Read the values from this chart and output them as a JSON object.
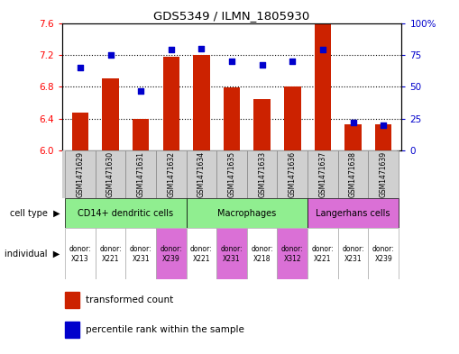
{
  "title": "GDS5349 / ILMN_1805930",
  "samples": [
    "GSM1471629",
    "GSM1471630",
    "GSM1471631",
    "GSM1471632",
    "GSM1471634",
    "GSM1471635",
    "GSM1471633",
    "GSM1471636",
    "GSM1471637",
    "GSM1471638",
    "GSM1471639"
  ],
  "transformed_count": [
    6.48,
    6.9,
    6.4,
    7.18,
    7.2,
    6.79,
    6.65,
    6.8,
    7.59,
    6.33,
    6.33
  ],
  "percentile_rank": [
    65,
    75,
    47,
    79,
    80,
    70,
    67,
    70,
    79,
    22,
    20
  ],
  "ylim_left": [
    6.0,
    7.6
  ],
  "ylim_right": [
    0,
    100
  ],
  "yticks_left": [
    6.0,
    6.4,
    6.8,
    7.2,
    7.6
  ],
  "yticks_right": [
    0,
    25,
    50,
    75,
    100
  ],
  "cell_types": [
    {
      "label": "CD14+ dendritic cells",
      "start": 0,
      "end": 4,
      "color": "#90ee90"
    },
    {
      "label": "Macrophages",
      "start": 4,
      "end": 8,
      "color": "#90ee90"
    },
    {
      "label": "Langerhans cells",
      "start": 8,
      "end": 11,
      "color": "#da70d6"
    }
  ],
  "ind_colors": [
    "#ffffff",
    "#ffffff",
    "#ffffff",
    "#da70d6",
    "#ffffff",
    "#da70d6",
    "#ffffff",
    "#da70d6",
    "#ffffff",
    "#ffffff",
    "#ffffff"
  ],
  "ind_labels": [
    "donor:\nX213",
    "donor:\nX221",
    "donor:\nX231",
    "donor:\nX239",
    "donor:\nX221",
    "donor:\nX231",
    "donor:\nX218",
    "donor:\nX312",
    "donor:\nX221",
    "donor:\nX231",
    "donor:\nX239"
  ],
  "bar_color": "#cc2200",
  "dot_color": "#0000cc",
  "bar_width": 0.55,
  "background_color": "#ffffff",
  "sample_box_color": "#d0d0d0"
}
